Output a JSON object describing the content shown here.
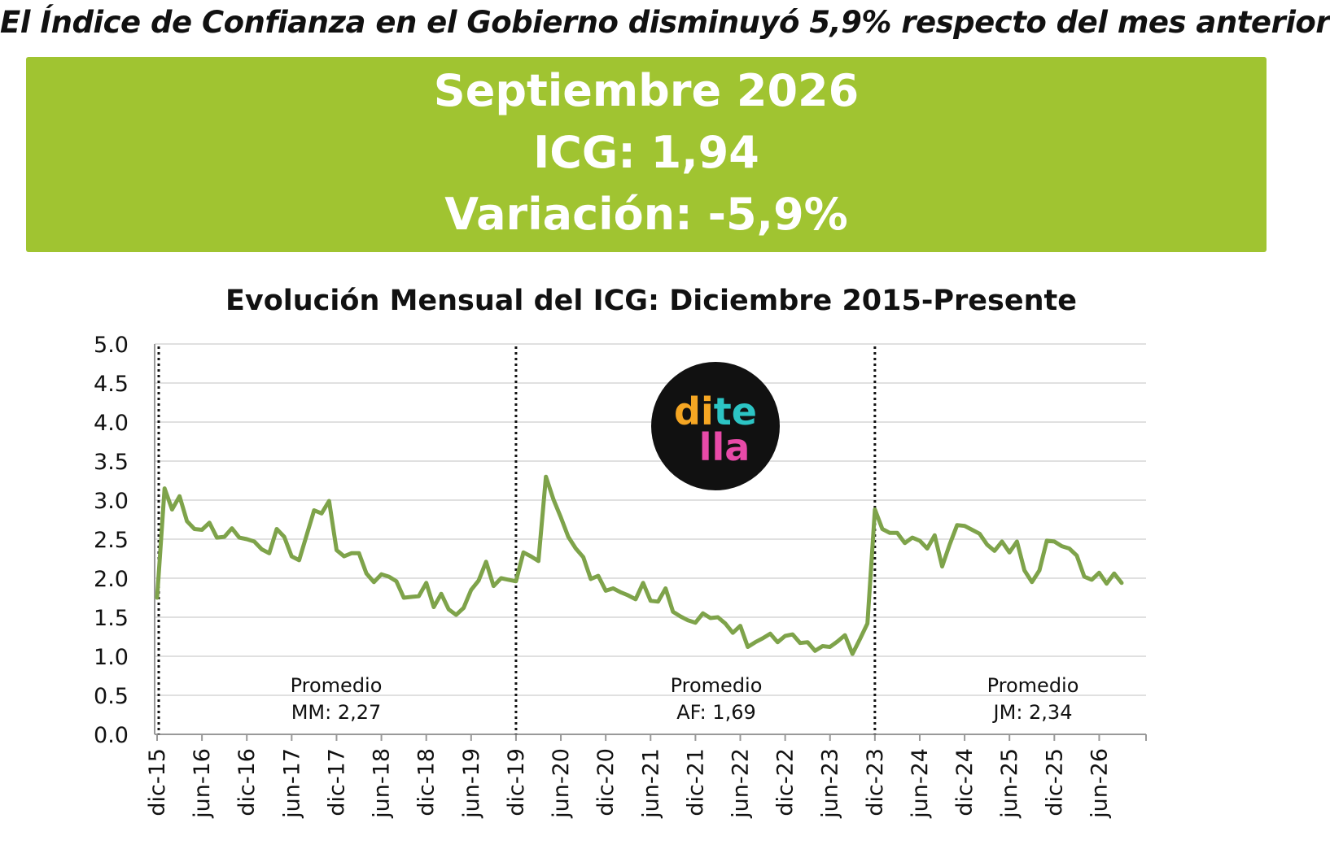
{
  "headline": "El Índice de Confianza en el Gobierno disminuyó 5,9% respecto del mes anterior",
  "banner": {
    "period": "Septiembre 2026",
    "icg": "ICG: 1,94",
    "variation": "Variación: -5,9%",
    "color": "#a0c431"
  },
  "logo": {
    "line1_a": "di",
    "line1_b": "te",
    "line2": "lla"
  },
  "chart_data": {
    "type": "line",
    "title": "Evolución Mensual del ICG: Diciembre 2015-Presente",
    "xlabel": "",
    "ylabel": "",
    "ylim": [
      0,
      5
    ],
    "yticks": [
      "0.0",
      "0.5",
      "1.0",
      "1.5",
      "2.0",
      "2.5",
      "3.0",
      "3.5",
      "4.0",
      "4.5",
      "5.0"
    ],
    "grid": true,
    "line_color": "#7ea34a",
    "x_start": "dic-15",
    "x_tick_labels": [
      "dic-15",
      "jun-16",
      "dic-16",
      "jun-17",
      "dic-17",
      "jun-18",
      "dic-18",
      "jun-19",
      "dic-19",
      "jun-20",
      "dic-20",
      "jun-21",
      "dic-21",
      "jun-22",
      "dic-22",
      "jun-23",
      "dic-23",
      "jun-24",
      "dic-24",
      "jun-25",
      "dic-25",
      "jun-26"
    ],
    "series": [
      {
        "values": [
          1.75,
          3.15,
          2.88,
          3.05,
          2.73,
          2.63,
          2.62,
          2.71,
          2.52,
          2.53,
          2.64,
          2.52,
          2.5,
          2.47,
          2.37,
          2.32,
          2.63,
          2.53,
          2.28,
          2.23,
          2.55,
          2.87,
          2.83,
          2.99,
          2.36,
          2.28,
          2.32,
          2.32,
          2.06,
          1.95,
          2.05,
          2.02,
          1.96,
          1.75,
          1.76,
          1.77,
          1.94,
          1.63,
          1.8,
          1.6,
          1.53,
          1.62,
          1.85,
          1.97,
          2.21,
          1.9,
          2.0,
          1.98,
          1.96,
          2.33,
          2.28,
          2.22,
          3.3,
          3.01,
          2.78,
          2.53,
          2.38,
          2.27,
          1.99,
          2.03,
          1.84,
          1.87,
          1.82,
          1.78,
          1.73,
          1.94,
          1.71,
          1.7,
          1.87,
          1.57,
          1.51,
          1.46,
          1.43,
          1.55,
          1.49,
          1.5,
          1.42,
          1.3,
          1.39,
          1.12,
          1.18,
          1.23,
          1.29,
          1.18,
          1.26,
          1.28,
          1.17,
          1.18,
          1.07,
          1.13,
          1.12,
          1.19,
          1.27,
          1.03,
          1.22,
          1.42,
          2.88,
          2.63,
          2.58,
          2.58,
          2.45,
          2.52,
          2.48,
          2.38,
          2.55,
          2.15,
          2.43,
          2.68,
          2.67,
          2.62,
          2.57,
          2.43,
          2.35,
          2.47,
          2.33,
          2.47,
          2.1,
          1.95,
          2.1,
          2.48,
          2.47,
          2.41,
          2.38,
          2.29,
          2.02,
          1.98,
          2.07,
          1.93,
          2.06,
          1.94
        ]
      }
    ],
    "period_dividers": [
      "dic-15",
      "dic-19",
      "dic-23"
    ],
    "annotations": [
      {
        "line1": "Promedio",
        "line2": "MM: 2,27"
      },
      {
        "line1": "Promedio",
        "line2": "AF: 1,69"
      },
      {
        "line1": "Promedio",
        "line2": "JM: 2,34"
      }
    ]
  }
}
